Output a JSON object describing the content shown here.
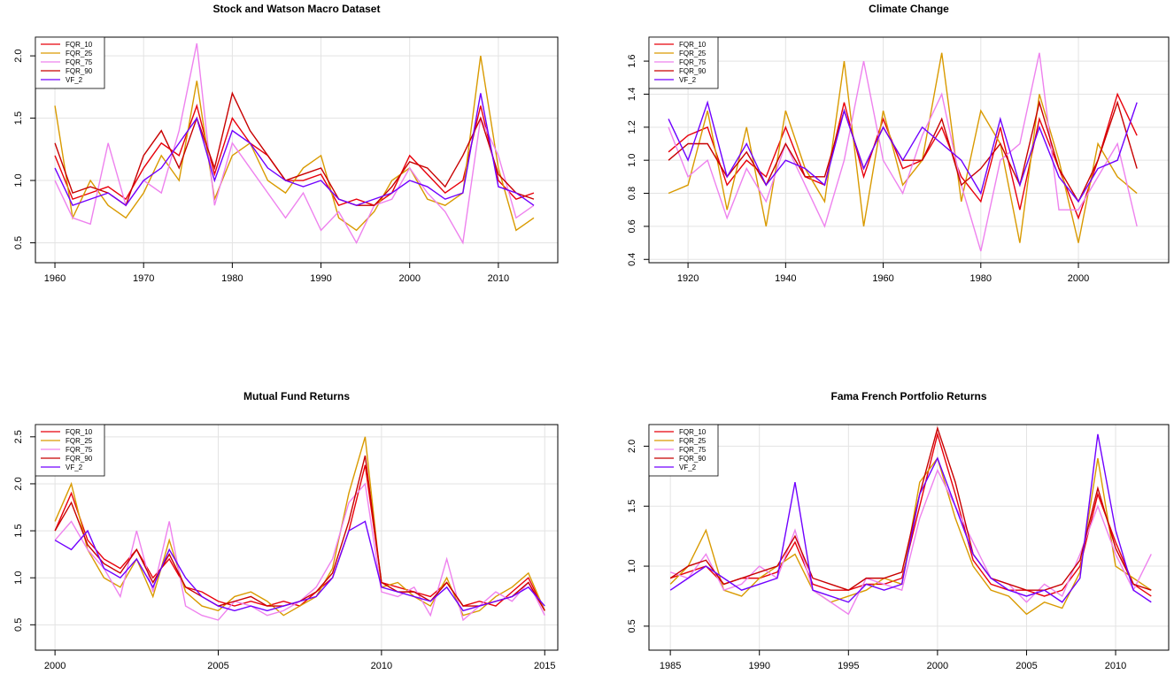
{
  "chart_data": [
    {
      "type": "line",
      "title": "Stock and Watson Macro Dataset",
      "legend": "topleft",
      "grid": true,
      "x": [
        1960,
        1962,
        1964,
        1966,
        1968,
        1970,
        1972,
        1974,
        1976,
        1978,
        1980,
        1982,
        1984,
        1986,
        1988,
        1990,
        1992,
        1994,
        1996,
        1998,
        2000,
        2002,
        2004,
        2006,
        2008,
        2010,
        2012,
        2014
      ],
      "xlim": [
        1957.8,
        2016.7
      ],
      "xticks": [
        1960,
        1970,
        1980,
        1990,
        2000,
        2010
      ],
      "ylim": [
        0.34,
        2.15
      ],
      "yticks": [
        0.5,
        {
          "value": 1,
          "label": "1.0"
        },
        1.5,
        {
          "value": 2,
          "label": "2.0"
        }
      ],
      "series": [
        {
          "name": "FQR_10",
          "color": "#e8000b",
          "values": [
            1.2,
            0.85,
            0.9,
            0.95,
            0.85,
            1.1,
            1.3,
            1.2,
            1.6,
            1.05,
            1.5,
            1.3,
            1.2,
            1.0,
            1.0,
            1.05,
            0.8,
            0.85,
            0.8,
            0.9,
            1.2,
            1.05,
            0.9,
            1.0,
            1.6,
            1.0,
            0.85,
            0.9
          ]
        },
        {
          "name": "FQR_25",
          "color": "#d99a00",
          "values": [
            1.6,
            0.7,
            1.0,
            0.8,
            0.7,
            0.9,
            1.2,
            1.0,
            1.8,
            0.85,
            1.2,
            1.3,
            1.0,
            0.9,
            1.1,
            1.2,
            0.7,
            0.6,
            0.75,
            1.0,
            1.1,
            0.85,
            0.8,
            0.9,
            2.0,
            1.1,
            0.6,
            0.7
          ]
        },
        {
          "name": "FQR_75",
          "color": "#ee82ee",
          "values": [
            1.0,
            0.7,
            0.65,
            1.3,
            0.8,
            1.0,
            0.9,
            1.4,
            2.1,
            0.8,
            1.3,
            1.1,
            0.9,
            0.7,
            0.9,
            0.6,
            0.75,
            0.5,
            0.8,
            0.85,
            1.1,
            0.9,
            0.75,
            0.5,
            1.5,
            1.2,
            0.7,
            0.8
          ]
        },
        {
          "name": "FQR_90",
          "color": "#c80000",
          "values": [
            1.3,
            0.9,
            0.95,
            0.9,
            0.8,
            1.2,
            1.4,
            1.1,
            1.5,
            1.1,
            1.7,
            1.4,
            1.2,
            1.0,
            1.05,
            1.1,
            0.85,
            0.8,
            0.8,
            0.95,
            1.15,
            1.1,
            0.95,
            1.2,
            1.5,
            1.05,
            0.9,
            0.85
          ]
        },
        {
          "name": "VF_2",
          "color": "#7000ff",
          "values": [
            1.1,
            0.8,
            0.85,
            0.9,
            0.8,
            1.0,
            1.1,
            1.3,
            1.5,
            1.0,
            1.4,
            1.3,
            1.1,
            1.0,
            0.95,
            1.0,
            0.85,
            0.8,
            0.85,
            0.9,
            1.0,
            0.95,
            0.85,
            0.9,
            1.7,
            0.95,
            0.9,
            0.8
          ]
        }
      ]
    },
    {
      "type": "line",
      "title": "Climate Change",
      "legend": "topleft",
      "grid": true,
      "x": [
        1916,
        1920,
        1924,
        1928,
        1932,
        1936,
        1940,
        1944,
        1948,
        1952,
        1956,
        1960,
        1964,
        1968,
        1972,
        1976,
        1980,
        1984,
        1988,
        1992,
        1996,
        2000,
        2004,
        2008,
        2012
      ],
      "xlim": [
        1912,
        2018.5
      ],
      "xticks": [
        1920,
        1940,
        1960,
        1980,
        2000
      ],
      "ylim": [
        0.38,
        1.745
      ],
      "yticks": [
        0.4,
        0.6,
        0.8,
        {
          "value": 1,
          "label": "1.0"
        },
        1.2,
        1.4,
        1.6
      ],
      "series": [
        {
          "name": "FQR_10",
          "color": "#e8000b",
          "values": [
            1.05,
            1.15,
            1.2,
            0.85,
            1.0,
            0.9,
            1.2,
            0.9,
            0.85,
            1.35,
            0.9,
            1.25,
            0.95,
            1.0,
            1.2,
            0.9,
            0.75,
            1.2,
            0.7,
            1.25,
            0.95,
            0.65,
            1.0,
            1.4,
            1.15
          ]
        },
        {
          "name": "FQR_25",
          "color": "#d99a00",
          "values": [
            0.8,
            0.85,
            1.3,
            0.7,
            1.2,
            0.6,
            1.3,
            0.95,
            0.75,
            1.6,
            0.6,
            1.3,
            0.85,
            1.0,
            1.65,
            0.75,
            1.3,
            1.1,
            0.5,
            1.4,
            1.0,
            0.5,
            1.1,
            0.9,
            0.8
          ]
        },
        {
          "name": "FQR_75",
          "color": "#ee82ee",
          "values": [
            1.2,
            0.9,
            1.0,
            0.65,
            0.95,
            0.75,
            1.1,
            0.85,
            0.6,
            1.0,
            1.6,
            1.0,
            0.8,
            1.15,
            1.4,
            0.85,
            0.45,
            1.0,
            1.1,
            1.65,
            0.7,
            0.7,
            0.9,
            1.1,
            0.6
          ]
        },
        {
          "name": "FQR_90",
          "color": "#c80000",
          "values": [
            1.0,
            1.1,
            1.1,
            0.9,
            1.05,
            0.85,
            1.1,
            0.9,
            0.9,
            1.3,
            0.95,
            1.2,
            1.0,
            1.0,
            1.25,
            0.85,
            0.95,
            1.1,
            0.85,
            1.35,
            0.95,
            0.75,
            1.0,
            1.35,
            0.95
          ]
        },
        {
          "name": "VF_2",
          "color": "#7000ff",
          "values": [
            1.25,
            1.0,
            1.35,
            0.9,
            1.1,
            0.85,
            1.0,
            0.95,
            0.85,
            1.3,
            0.95,
            1.2,
            1.0,
            1.2,
            1.1,
            1.0,
            0.8,
            1.25,
            0.85,
            1.2,
            0.9,
            0.75,
            0.95,
            1.0,
            1.35
          ]
        }
      ]
    },
    {
      "type": "line",
      "title": "Mutual Fund Returns",
      "legend": "topleft",
      "grid": true,
      "x": [
        2000,
        2000.5,
        2001,
        2001.5,
        2002,
        2002.5,
        2003,
        2003.5,
        2004,
        2004.5,
        2005,
        2005.5,
        2006,
        2006.5,
        2007,
        2007.5,
        2008,
        2008.5,
        2009,
        2009.5,
        2010,
        2010.5,
        2011,
        2011.5,
        2012,
        2012.5,
        2013,
        2013.5,
        2014,
        2014.5,
        2015
      ],
      "xlim": [
        1999.4,
        2015.4
      ],
      "xticks": [
        2000,
        2005,
        2010,
        2015
      ],
      "ylim": [
        0.23,
        2.63
      ],
      "yticks": [
        0.5,
        {
          "value": 1,
          "label": "1.0"
        },
        1.5,
        {
          "value": 2,
          "label": "2.0"
        },
        2.5
      ],
      "series": [
        {
          "name": "FQR_10",
          "color": "#e8000b",
          "values": [
            1.5,
            1.9,
            1.4,
            1.2,
            1.1,
            1.3,
            1.0,
            1.2,
            0.9,
            0.85,
            0.75,
            0.7,
            0.75,
            0.7,
            0.75,
            0.7,
            0.85,
            1.0,
            1.5,
            2.2,
            0.95,
            0.9,
            0.85,
            0.8,
            0.95,
            0.7,
            0.75,
            0.7,
            0.85,
            1.0,
            0.65
          ]
        },
        {
          "name": "FQR_25",
          "color": "#d99a00",
          "values": [
            1.6,
            2.0,
            1.3,
            1.0,
            0.9,
            1.2,
            0.8,
            1.4,
            0.85,
            0.7,
            0.65,
            0.8,
            0.85,
            0.75,
            0.6,
            0.7,
            0.8,
            1.1,
            1.9,
            2.5,
            0.9,
            0.95,
            0.8,
            0.7,
            1.0,
            0.6,
            0.65,
            0.8,
            0.9,
            1.05,
            0.65
          ]
        },
        {
          "name": "FQR_75",
          "color": "#ee82ee",
          "values": [
            1.4,
            1.6,
            1.3,
            1.1,
            0.8,
            1.5,
            0.85,
            1.6,
            0.7,
            0.6,
            0.55,
            0.75,
            0.7,
            0.6,
            0.65,
            0.75,
            0.9,
            1.2,
            1.8,
            2.0,
            0.85,
            0.8,
            0.9,
            0.6,
            1.2,
            0.55,
            0.7,
            0.85,
            0.75,
            0.95,
            0.6
          ]
        },
        {
          "name": "FQR_90",
          "color": "#c80000",
          "values": [
            1.5,
            1.8,
            1.35,
            1.15,
            1.05,
            1.3,
            0.95,
            1.25,
            0.9,
            0.8,
            0.7,
            0.75,
            0.8,
            0.7,
            0.7,
            0.75,
            0.85,
            1.05,
            1.6,
            2.3,
            0.95,
            0.85,
            0.85,
            0.75,
            0.95,
            0.7,
            0.7,
            0.75,
            0.8,
            0.95,
            0.65
          ]
        },
        {
          "name": "VF_2",
          "color": "#7000ff",
          "values": [
            1.4,
            1.3,
            1.5,
            1.1,
            1.0,
            1.2,
            0.9,
            1.3,
            1.0,
            0.8,
            0.7,
            0.65,
            0.7,
            0.65,
            0.7,
            0.75,
            0.8,
            1.0,
            1.5,
            1.6,
            0.9,
            0.85,
            0.8,
            0.75,
            0.9,
            0.65,
            0.7,
            0.75,
            0.8,
            0.9,
            0.7
          ]
        }
      ]
    },
    {
      "type": "line",
      "title": "Fama French Portfolio Returns",
      "legend": "topleft",
      "grid": true,
      "x": [
        1985,
        1986,
        1987,
        1988,
        1989,
        1990,
        1991,
        1992,
        1993,
        1994,
        1995,
        1996,
        1997,
        1998,
        1999,
        2000,
        2001,
        2002,
        2003,
        2004,
        2005,
        2006,
        2007,
        2008,
        2009,
        2010,
        2011,
        2012
      ],
      "xlim": [
        1983.8,
        2012.98
      ],
      "xticks": [
        1985,
        1990,
        1995,
        2000,
        2005,
        2010
      ],
      "ylim": [
        0.3,
        2.18
      ],
      "yticks": [
        0.5,
        {
          "value": 1,
          "label": "1.0"
        },
        1.5,
        {
          "value": 2,
          "label": "2.0"
        }
      ],
      "series": [
        {
          "name": "FQR_10",
          "color": "#e8000b",
          "values": [
            0.9,
            0.95,
            1.0,
            0.85,
            0.9,
            0.9,
            0.95,
            1.2,
            0.85,
            0.8,
            0.8,
            0.85,
            0.85,
            0.9,
            1.5,
            2.1,
            1.6,
            1.05,
            0.85,
            0.8,
            0.8,
            0.75,
            0.8,
            1.0,
            1.6,
            1.2,
            0.85,
            0.75
          ]
        },
        {
          "name": "FQR_25",
          "color": "#d99a00",
          "values": [
            0.85,
            1.0,
            1.3,
            0.8,
            0.75,
            0.9,
            1.0,
            1.1,
            0.8,
            0.7,
            0.75,
            0.8,
            0.9,
            0.85,
            1.7,
            1.9,
            1.4,
            1.0,
            0.8,
            0.75,
            0.6,
            0.7,
            0.65,
            0.95,
            1.9,
            1.0,
            0.9,
            0.8
          ]
        },
        {
          "name": "FQR_75",
          "color": "#ee82ee",
          "values": [
            0.95,
            0.9,
            1.1,
            0.8,
            0.85,
            1.0,
            0.9,
            1.3,
            0.8,
            0.7,
            0.6,
            0.9,
            0.85,
            0.8,
            1.4,
            1.8,
            1.5,
            1.2,
            0.9,
            0.85,
            0.7,
            0.85,
            0.75,
            1.1,
            1.5,
            1.1,
            0.8,
            1.1
          ]
        },
        {
          "name": "FQR_90",
          "color": "#c80000",
          "values": [
            0.9,
            1.0,
            1.05,
            0.85,
            0.9,
            0.95,
            1.0,
            1.25,
            0.9,
            0.85,
            0.8,
            0.9,
            0.9,
            0.95,
            1.6,
            2.15,
            1.7,
            1.1,
            0.9,
            0.85,
            0.8,
            0.8,
            0.85,
            1.05,
            1.65,
            1.15,
            0.85,
            0.8
          ]
        },
        {
          "name": "VF_2",
          "color": "#7000ff",
          "values": [
            0.8,
            0.9,
            1.0,
            0.9,
            0.8,
            0.85,
            0.9,
            1.7,
            0.8,
            0.75,
            0.7,
            0.85,
            0.8,
            0.85,
            1.6,
            1.9,
            1.5,
            1.1,
            0.9,
            0.8,
            0.75,
            0.8,
            0.7,
            0.9,
            2.1,
            1.3,
            0.8,
            0.7
          ]
        }
      ]
    }
  ]
}
